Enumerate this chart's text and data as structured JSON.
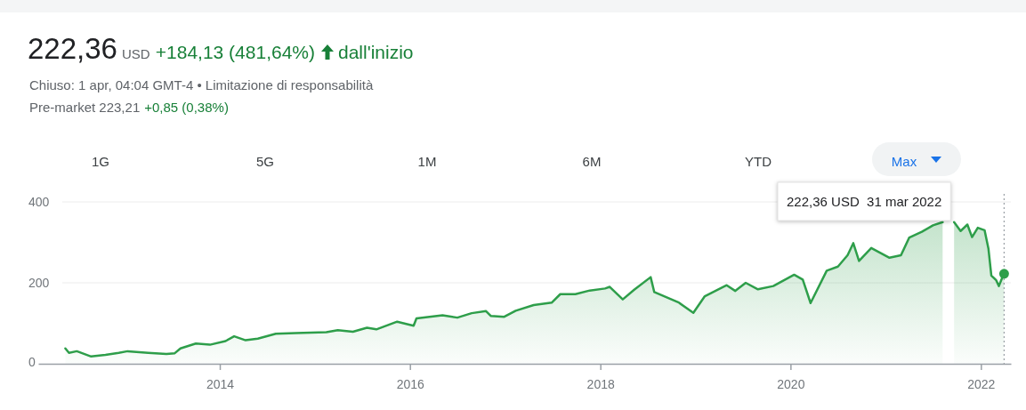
{
  "chart_data": {
    "type": "area",
    "title": "222,36",
    "annotations": [
      "USD",
      "+184,13 (481,64%)",
      "dall'inizio",
      "Chiuso: 1 apr, 04:04 GMT-4 • Limitazione di responsabilità",
      "Pre-market 223,21",
      "+0,85 (0,38%)",
      "1G",
      "5G",
      "1M",
      "6M",
      "YTD",
      "Max",
      "222,36 USD  31 mar 2022"
    ],
    "x": [
      "2012-05-18",
      "2012-06-01",
      "2012-07-01",
      "2012-08-25",
      "2012-10-19",
      "2012-12-09",
      "2013-01-12",
      "2013-04-01",
      "2013-06-10",
      "2013-07-12",
      "2013-08-03",
      "2013-10-01",
      "2013-11-24",
      "2014-01-23",
      "2014-02-25",
      "2014-04-10",
      "2014-05-27",
      "2014-08-04",
      "2014-10-20",
      "2015-02-14",
      "2015-03-30",
      "2015-05-27",
      "2015-07-20",
      "2015-08-25",
      "2015-11-13",
      "2016-01-15",
      "2016-01-26",
      "2016-05-05",
      "2016-07-01",
      "2016-08-25",
      "2016-10-19",
      "2016-11-07",
      "2016-12-28",
      "2017-02-10",
      "2017-04-20",
      "2017-06-28",
      "2017-07-31",
      "2017-09-27",
      "2017-11-21",
      "2018-01-19",
      "2018-02-06",
      "2018-03-28",
      "2018-05-11",
      "2018-07-13",
      "2018-07-27",
      "2018-10-27",
      "2018-12-24",
      "2019-02-06",
      "2019-05-01",
      "2019-06-03",
      "2019-07-13",
      "2019-08-29",
      "2019-10-27",
      "2020-01-15",
      "2020-02-17",
      "2020-03-18",
      "2020-05-19",
      "2020-07-01",
      "2020-08-07",
      "2020-08-29",
      "2020-09-20",
      "2020-11-06",
      "2021-01-15",
      "2021-02-28",
      "2021-04-01",
      "2021-05-19",
      "2021-07-01",
      "2021-08-07",
      "2021-09-05",
      "2021-09-20",
      "2021-10-15",
      "2021-11-10",
      "2021-11-28",
      "2021-12-20",
      "2022-01-15",
      "2022-01-30",
      "2022-02-10",
      "2022-02-28",
      "2022-03-11",
      "2022-03-22",
      "2022-03-31"
    ],
    "series": [
      {
        "color": "#2e9e4a",
        "values": [
          38,
          27,
          31,
          18,
          22,
          27,
          31,
          27,
          24,
          26,
          38,
          50,
          47,
          56,
          68,
          58,
          62,
          74,
          76,
          78,
          83,
          79,
          89,
          85,
          104,
          94,
          112,
          120,
          114,
          125,
          130,
          118,
          116,
          131,
          145,
          151,
          172,
          172,
          181,
          186,
          190,
          159,
          183,
          214,
          177,
          152,
          126,
          167,
          194,
          180,
          200,
          184,
          192,
          220,
          208,
          150,
          230,
          240,
          268,
          298,
          254,
          286,
          262,
          268,
          312,
          326,
          342,
          350,
          null,
          350,
          328,
          344,
          313,
          336,
          330,
          284,
          218,
          207,
          192,
          210,
          222.36
        ]
      }
    ],
    "xlim": [
      "2012-02-04",
      "2022-04-26"
    ],
    "xticks": [
      {
        "value": "2014-01-01",
        "label": "2014"
      },
      {
        "value": "2016-01-01",
        "label": "2016"
      },
      {
        "value": "2018-01-01",
        "label": "2018"
      },
      {
        "value": "2020-01-01",
        "label": "2020"
      },
      {
        "value": "2022-01-01",
        "label": "2022"
      }
    ],
    "ylim": [
      0,
      420
    ],
    "yticks": [
      0,
      200,
      400
    ],
    "grid": "y",
    "ref_lines": [
      {
        "axis": "x",
        "value": "2022-03-31",
        "color": "#9aa0a6",
        "line_style": "dotted"
      }
    ]
  }
}
